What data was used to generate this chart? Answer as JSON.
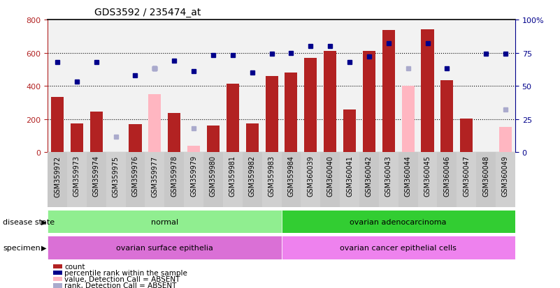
{
  "title": "GDS3592 / 235474_at",
  "samples": [
    "GSM359972",
    "GSM359973",
    "GSM359974",
    "GSM359975",
    "GSM359976",
    "GSM359977",
    "GSM359978",
    "GSM359979",
    "GSM359980",
    "GSM359981",
    "GSM359982",
    "GSM359983",
    "GSM359984",
    "GSM360039",
    "GSM360040",
    "GSM360041",
    "GSM360042",
    "GSM360043",
    "GSM360044",
    "GSM360045",
    "GSM360046",
    "GSM360047",
    "GSM360048",
    "GSM360049"
  ],
  "count": [
    335,
    175,
    245,
    null,
    170,
    null,
    235,
    null,
    160,
    415,
    175,
    460,
    480,
    570,
    610,
    260,
    610,
    735,
    null,
    740,
    435,
    205,
    null,
    null
  ],
  "percentile_rank": [
    68,
    53,
    68,
    null,
    58,
    63,
    69,
    61,
    73,
    73,
    60,
    74,
    75,
    80,
    80,
    68,
    72,
    82,
    null,
    82,
    63,
    null,
    74,
    74
  ],
  "count_absent": [
    null,
    null,
    null,
    null,
    null,
    350,
    null,
    40,
    null,
    null,
    null,
    null,
    null,
    null,
    null,
    null,
    null,
    null,
    400,
    null,
    null,
    null,
    null,
    155
  ],
  "rank_absent": [
    null,
    null,
    null,
    12,
    null,
    63,
    null,
    18,
    null,
    null,
    null,
    null,
    null,
    null,
    null,
    null,
    null,
    null,
    63,
    null,
    null,
    null,
    null,
    32
  ],
  "disease_state_groups": [
    {
      "label": "normal",
      "start": 0,
      "end": 12,
      "color": "#90EE90"
    },
    {
      "label": "ovarian adenocarcinoma",
      "start": 12,
      "end": 24,
      "color": "#32CD32"
    }
  ],
  "specimen_groups": [
    {
      "label": "ovarian surface epithelia",
      "start": 0,
      "end": 12,
      "color": "#DA70D6"
    },
    {
      "label": "ovarian cancer epithelial cells",
      "start": 12,
      "end": 24,
      "color": "#EE82EE"
    }
  ],
  "ylim_left": [
    0,
    800
  ],
  "ylim_right": [
    0,
    100
  ],
  "yticks_left": [
    0,
    200,
    400,
    600,
    800
  ],
  "yticks_right": [
    0,
    25,
    50,
    75,
    100
  ],
  "ytick_right_labels": [
    "0",
    "25",
    "50",
    "75",
    "100%"
  ],
  "bar_color_present": "#B22222",
  "bar_color_absent": "#FFB6C1",
  "dot_color_present": "#00008B",
  "dot_color_absent": "#AAAACC",
  "legend": [
    {
      "label": "count",
      "color": "#B22222"
    },
    {
      "label": "percentile rank within the sample",
      "color": "#00008B"
    },
    {
      "label": "value, Detection Call = ABSENT",
      "color": "#FFB6C1"
    },
    {
      "label": "rank, Detection Call = ABSENT",
      "color": "#AAAACC"
    }
  ]
}
